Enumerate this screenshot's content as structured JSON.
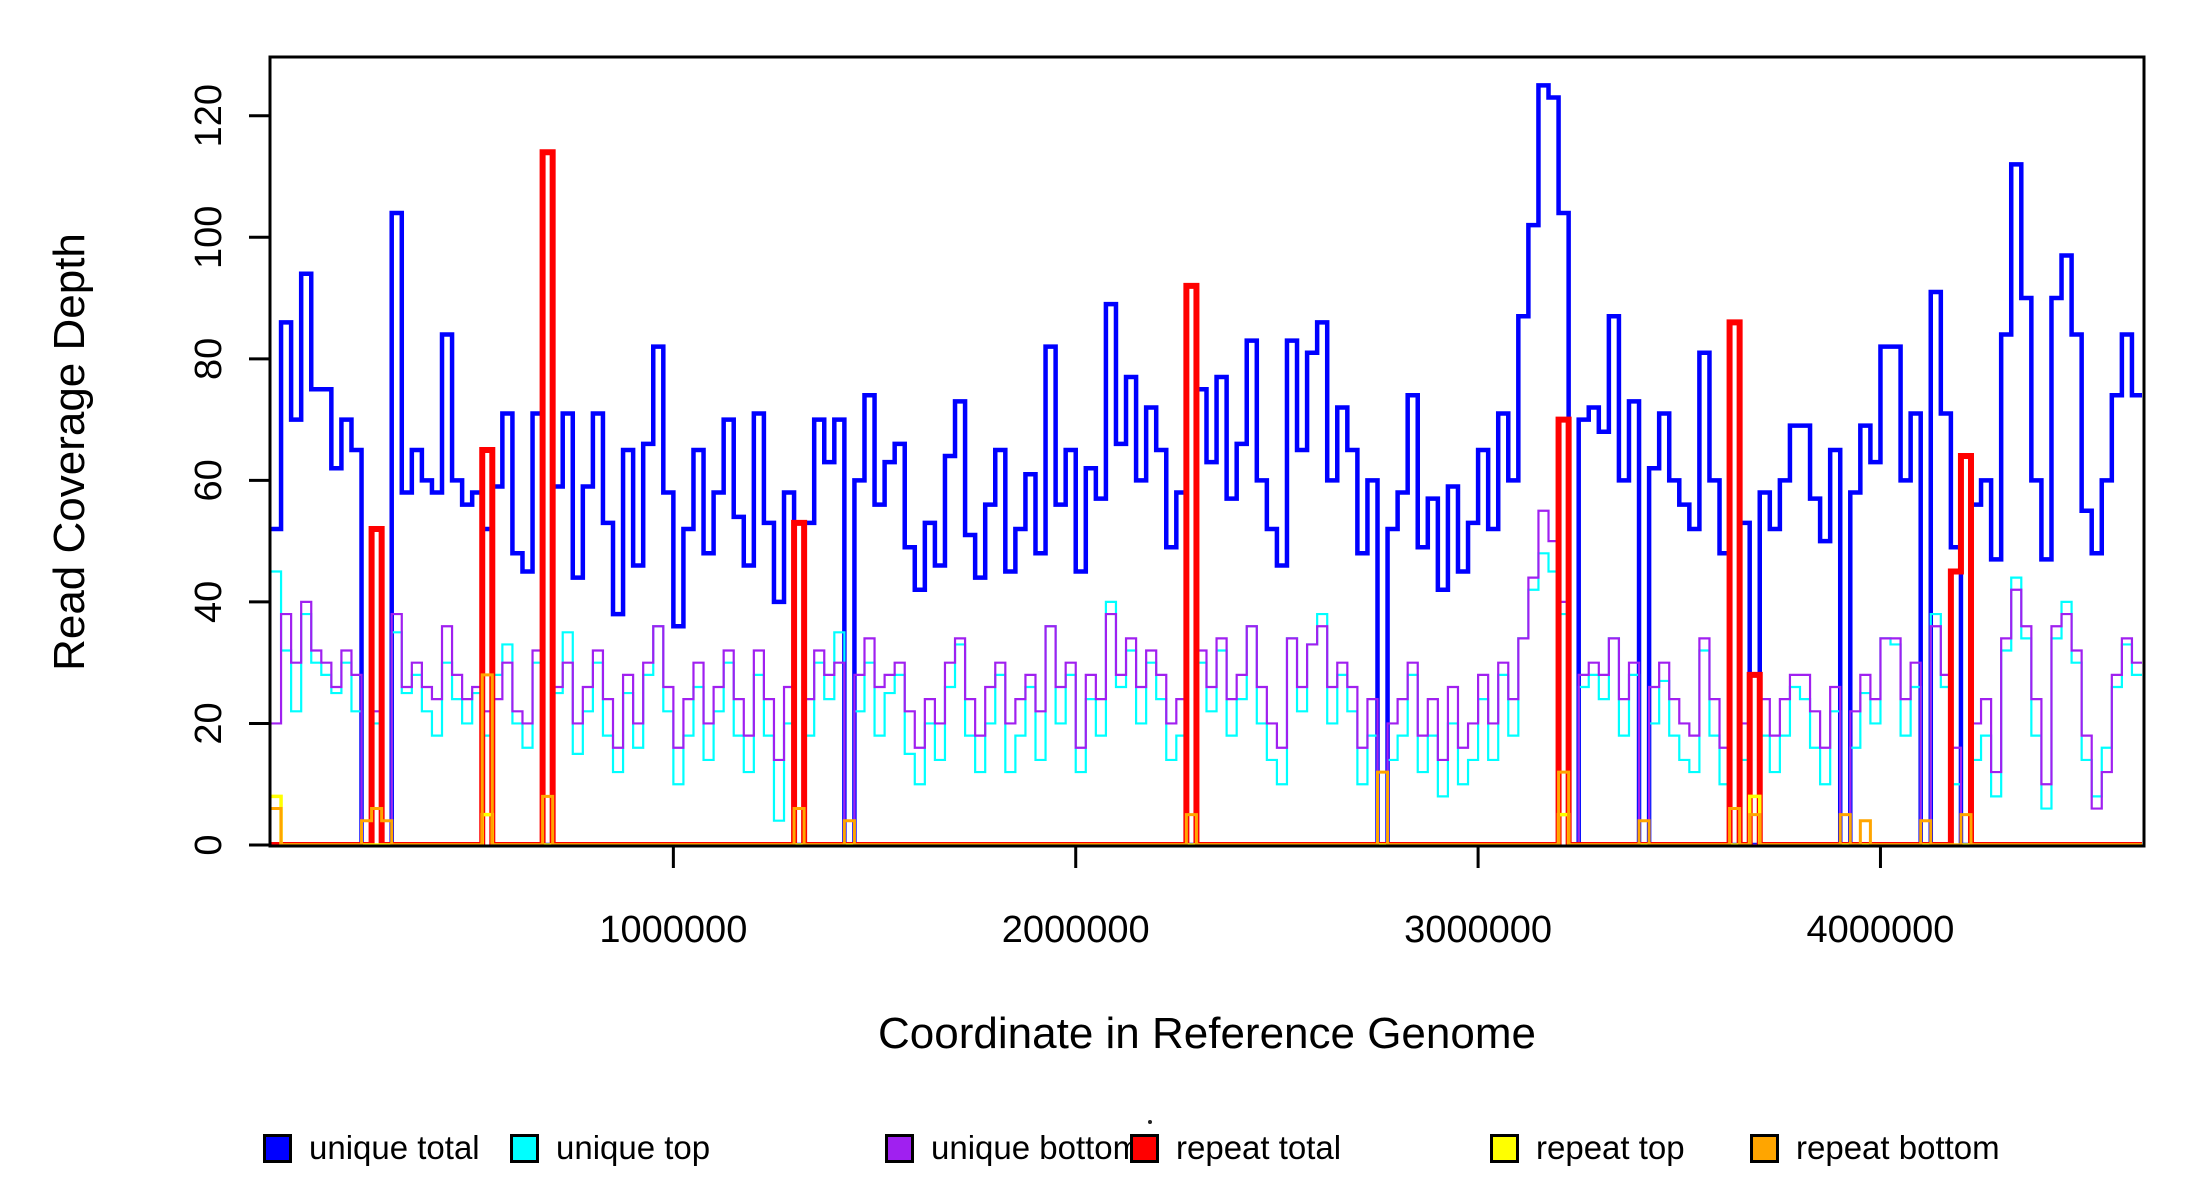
{
  "figure": {
    "background_color": "#FFFFFF",
    "axis_color": "#000000"
  },
  "legend": {
    "items": [
      {
        "label": "unique total",
        "color": "#0000FF"
      },
      {
        "label": "unique top",
        "color": "#00FFFF"
      },
      {
        "label": "unique bottom",
        "color": "#A020F0"
      },
      {
        "label": "repeat total",
        "color": "#FF0000"
      },
      {
        "label": "repeat top",
        "color": "#FFFF00"
      },
      {
        "label": "repeat bottom",
        "color": "#FFA500"
      }
    ]
  },
  "chart_data": {
    "type": "line",
    "style": "step",
    "xlabel": "Coordinate in Reference Genome",
    "ylabel": "Read Coverage Depth",
    "xlim": [
      0,
      4650000
    ],
    "ylim": [
      0,
      129.5
    ],
    "grid": false,
    "legend_position": "bottom",
    "x_ticks": [
      {
        "value": 1000000,
        "label": "1000000"
      },
      {
        "value": 2000000,
        "label": "2000000"
      },
      {
        "value": 3000000,
        "label": "3000000"
      },
      {
        "value": 4000000,
        "label": "4000000"
      }
    ],
    "y_ticks": [
      {
        "value": 0,
        "label": "0"
      },
      {
        "value": 20,
        "label": "20"
      },
      {
        "value": 40,
        "label": "40"
      },
      {
        "value": 60,
        "label": "60"
      },
      {
        "value": 80,
        "label": "80"
      },
      {
        "value": 100,
        "label": "100"
      },
      {
        "value": 120,
        "label": "120"
      }
    ],
    "bin_size": 25000,
    "x_start": 0,
    "series": [
      {
        "name": "unique total",
        "color": "#0000FF",
        "line_width": 4.5,
        "values": [
          52,
          86,
          70,
          94,
          75,
          75,
          62,
          70,
          65,
          0,
          52,
          0,
          104,
          58,
          65,
          60,
          58,
          84,
          60,
          56,
          58,
          52,
          59,
          71,
          48,
          45,
          71,
          0,
          59,
          71,
          44,
          59,
          71,
          53,
          38,
          65,
          46,
          66,
          82,
          58,
          36,
          52,
          65,
          48,
          58,
          70,
          54,
          46,
          71,
          53,
          40,
          58,
          0,
          53,
          70,
          63,
          70,
          0,
          60,
          74,
          56,
          63,
          66,
          49,
          42,
          53,
          46,
          64,
          73,
          51,
          44,
          56,
          65,
          45,
          52,
          61,
          48,
          82,
          56,
          65,
          45,
          62,
          57,
          89,
          66,
          77,
          60,
          72,
          65,
          49,
          58,
          0,
          75,
          63,
          77,
          57,
          66,
          83,
          60,
          52,
          46,
          83,
          65,
          81,
          86,
          60,
          72,
          65,
          48,
          60,
          0,
          52,
          58,
          74,
          49,
          57,
          42,
          59,
          45,
          53,
          65,
          52,
          71,
          60,
          87,
          102,
          125,
          123,
          104,
          0,
          70,
          72,
          68,
          87,
          60,
          73,
          0,
          62,
          71,
          60,
          56,
          52,
          81,
          60,
          48,
          0,
          53,
          0,
          58,
          52,
          60,
          69,
          69,
          57,
          50,
          65,
          0,
          58,
          69,
          63,
          82,
          82,
          60,
          71,
          0,
          91,
          71,
          49,
          0,
          56,
          60,
          47,
          84,
          112,
          90,
          60,
          47,
          90,
          97,
          84,
          55,
          48,
          60,
          74,
          84,
          74
        ]
      },
      {
        "name": "unique top",
        "color": "#00FFFF",
        "line_width": 2.2,
        "values": [
          45,
          32,
          22,
          38,
          30,
          28,
          25,
          30,
          22,
          0,
          20,
          0,
          35,
          25,
          28,
          22,
          18,
          30,
          24,
          20,
          25,
          18,
          28,
          33,
          20,
          16,
          30,
          0,
          25,
          35,
          15,
          22,
          30,
          18,
          12,
          25,
          16,
          28,
          36,
          22,
          10,
          18,
          26,
          14,
          22,
          30,
          18,
          12,
          28,
          18,
          4,
          20,
          0,
          18,
          30,
          24,
          35,
          0,
          22,
          30,
          18,
          25,
          28,
          15,
          10,
          20,
          14,
          26,
          33,
          18,
          12,
          20,
          28,
          12,
          18,
          26,
          14,
          36,
          20,
          28,
          12,
          24,
          18,
          40,
          26,
          32,
          20,
          30,
          24,
          14,
          18,
          0,
          30,
          22,
          32,
          18,
          24,
          36,
          20,
          14,
          10,
          34,
          22,
          33,
          38,
          20,
          28,
          22,
          10,
          18,
          0,
          14,
          18,
          28,
          12,
          18,
          8,
          20,
          10,
          14,
          24,
          14,
          28,
          18,
          34,
          42,
          48,
          45,
          38,
          0,
          26,
          28,
          24,
          34,
          18,
          28,
          0,
          20,
          27,
          18,
          14,
          12,
          32,
          18,
          10,
          0,
          14,
          0,
          18,
          12,
          18,
          26,
          24,
          16,
          10,
          22,
          0,
          16,
          25,
          20,
          34,
          33,
          18,
          26,
          0,
          38,
          26,
          10,
          0,
          14,
          18,
          8,
          32,
          44,
          34,
          18,
          6,
          34,
          40,
          30,
          14,
          8,
          16,
          26,
          33,
          28
        ]
      },
      {
        "name": "unique bottom",
        "color": "#A020F0",
        "line_width": 2.2,
        "values": [
          20,
          38,
          30,
          40,
          32,
          30,
          26,
          32,
          28,
          0,
          22,
          0,
          38,
          26,
          30,
          26,
          24,
          36,
          28,
          24,
          26,
          22,
          24,
          30,
          22,
          20,
          32,
          0,
          26,
          30,
          20,
          26,
          32,
          24,
          16,
          28,
          20,
          30,
          36,
          26,
          16,
          24,
          30,
          20,
          26,
          32,
          24,
          18,
          32,
          24,
          14,
          26,
          0,
          24,
          32,
          28,
          30,
          0,
          28,
          34,
          26,
          28,
          30,
          22,
          16,
          24,
          20,
          30,
          34,
          24,
          18,
          26,
          30,
          20,
          24,
          28,
          22,
          36,
          26,
          30,
          16,
          28,
          24,
          38,
          28,
          34,
          26,
          32,
          28,
          20,
          24,
          0,
          32,
          26,
          34,
          24,
          28,
          36,
          26,
          20,
          16,
          34,
          26,
          33,
          36,
          26,
          30,
          26,
          16,
          24,
          0,
          20,
          24,
          30,
          18,
          24,
          14,
          26,
          16,
          20,
          28,
          20,
          30,
          24,
          34,
          44,
          55,
          50,
          40,
          0,
          28,
          30,
          28,
          34,
          24,
          30,
          0,
          26,
          30,
          24,
          20,
          18,
          34,
          24,
          16,
          0,
          20,
          0,
          24,
          18,
          24,
          28,
          28,
          22,
          16,
          26,
          0,
          22,
          28,
          24,
          34,
          34,
          24,
          30,
          0,
          36,
          28,
          16,
          0,
          20,
          24,
          12,
          34,
          42,
          36,
          24,
          10,
          36,
          38,
          32,
          18,
          6,
          12,
          28,
          34,
          30
        ]
      },
      {
        "name": "repeat total",
        "color": "#FF0000",
        "line_width": 6,
        "values": [
          0,
          0,
          0,
          0,
          0,
          0,
          0,
          0,
          0,
          0,
          52,
          0,
          0,
          0,
          0,
          0,
          0,
          0,
          0,
          0,
          0,
          65,
          0,
          0,
          0,
          0,
          0,
          114,
          0,
          0,
          0,
          0,
          0,
          0,
          0,
          0,
          0,
          0,
          0,
          0,
          0,
          0,
          0,
          0,
          0,
          0,
          0,
          0,
          0,
          0,
          0,
          0,
          53,
          0,
          0,
          0,
          0,
          0,
          0,
          0,
          0,
          0,
          0,
          0,
          0,
          0,
          0,
          0,
          0,
          0,
          0,
          0,
          0,
          0,
          0,
          0,
          0,
          0,
          0,
          0,
          0,
          0,
          0,
          0,
          0,
          0,
          0,
          0,
          0,
          0,
          0,
          92,
          0,
          0,
          0,
          0,
          0,
          0,
          0,
          0,
          0,
          0,
          0,
          0,
          0,
          0,
          0,
          0,
          0,
          0,
          0,
          0,
          0,
          0,
          0,
          0,
          0,
          0,
          0,
          0,
          0,
          0,
          0,
          0,
          0,
          0,
          0,
          0,
          70,
          0,
          0,
          0,
          0,
          0,
          0,
          0,
          0,
          0,
          0,
          0,
          0,
          0,
          0,
          0,
          0,
          86,
          0,
          28,
          0,
          0,
          0,
          0,
          0,
          0,
          0,
          0,
          0,
          0,
          0,
          0,
          0,
          0,
          0,
          0,
          0,
          0,
          0,
          45,
          64,
          0,
          0,
          0,
          0,
          0,
          0,
          0,
          0,
          0,
          0,
          0,
          0,
          0,
          0,
          0,
          0,
          0
        ]
      },
      {
        "name": "repeat top",
        "color": "#FFFF00",
        "line_width": 3.5,
        "values": [
          8,
          0,
          0,
          0,
          0,
          0,
          0,
          0,
          0,
          0,
          0,
          0,
          0,
          0,
          0,
          0,
          0,
          0,
          0,
          0,
          0,
          5,
          0,
          0,
          0,
          0,
          0,
          0,
          0,
          0,
          0,
          0,
          0,
          0,
          0,
          0,
          0,
          0,
          0,
          0,
          0,
          0,
          0,
          0,
          0,
          0,
          0,
          0,
          0,
          0,
          0,
          0,
          0,
          0,
          0,
          0,
          0,
          0,
          0,
          0,
          0,
          0,
          0,
          0,
          0,
          0,
          0,
          0,
          0,
          0,
          0,
          0,
          0,
          0,
          0,
          0,
          0,
          0,
          0,
          0,
          0,
          0,
          0,
          0,
          0,
          0,
          0,
          0,
          0,
          0,
          0,
          0,
          0,
          0,
          0,
          0,
          0,
          0,
          0,
          0,
          0,
          0,
          0,
          0,
          0,
          0,
          0,
          0,
          0,
          0,
          0,
          0,
          0,
          0,
          0,
          0,
          0,
          0,
          0,
          0,
          0,
          0,
          0,
          0,
          0,
          0,
          0,
          0,
          5,
          0,
          0,
          0,
          0,
          0,
          0,
          0,
          0,
          0,
          0,
          0,
          0,
          0,
          0,
          0,
          0,
          0,
          0,
          8,
          0,
          0,
          0,
          0,
          0,
          0,
          0,
          0,
          0,
          0,
          0,
          0,
          0,
          0,
          0,
          0,
          0,
          0,
          0,
          0,
          0,
          0,
          0,
          0,
          0,
          0,
          0,
          0,
          0,
          0,
          0,
          0,
          0,
          0,
          0,
          0,
          0,
          0
        ]
      },
      {
        "name": "repeat bottom",
        "color": "#FFA500",
        "line_width": 3,
        "values": [
          6,
          0,
          0,
          0,
          0,
          0,
          0,
          0,
          0,
          4,
          6,
          4,
          0,
          0,
          0,
          0,
          0,
          0,
          0,
          0,
          0,
          28,
          0,
          0,
          0,
          0,
          0,
          8,
          0,
          0,
          0,
          0,
          0,
          0,
          0,
          0,
          0,
          0,
          0,
          0,
          0,
          0,
          0,
          0,
          0,
          0,
          0,
          0,
          0,
          0,
          0,
          0,
          6,
          0,
          0,
          0,
          0,
          4,
          0,
          0,
          0,
          0,
          0,
          0,
          0,
          0,
          0,
          0,
          0,
          0,
          0,
          0,
          0,
          0,
          0,
          0,
          0,
          0,
          0,
          0,
          0,
          0,
          0,
          0,
          0,
          0,
          0,
          0,
          0,
          0,
          0,
          5,
          0,
          0,
          0,
          0,
          0,
          0,
          0,
          0,
          0,
          0,
          0,
          0,
          0,
          0,
          0,
          0,
          0,
          0,
          12,
          0,
          0,
          0,
          0,
          0,
          0,
          0,
          0,
          0,
          0,
          0,
          0,
          0,
          0,
          0,
          0,
          0,
          12,
          0,
          0,
          0,
          0,
          0,
          0,
          0,
          4,
          0,
          0,
          0,
          0,
          0,
          0,
          0,
          0,
          6,
          0,
          5,
          0,
          0,
          0,
          0,
          0,
          0,
          0,
          0,
          5,
          0,
          4,
          0,
          0,
          0,
          0,
          0,
          4,
          0,
          0,
          0,
          5,
          0,
          0,
          0,
          0,
          0,
          0,
          0,
          0,
          0,
          0,
          0,
          0,
          0,
          0,
          0,
          0,
          0
        ]
      }
    ]
  }
}
